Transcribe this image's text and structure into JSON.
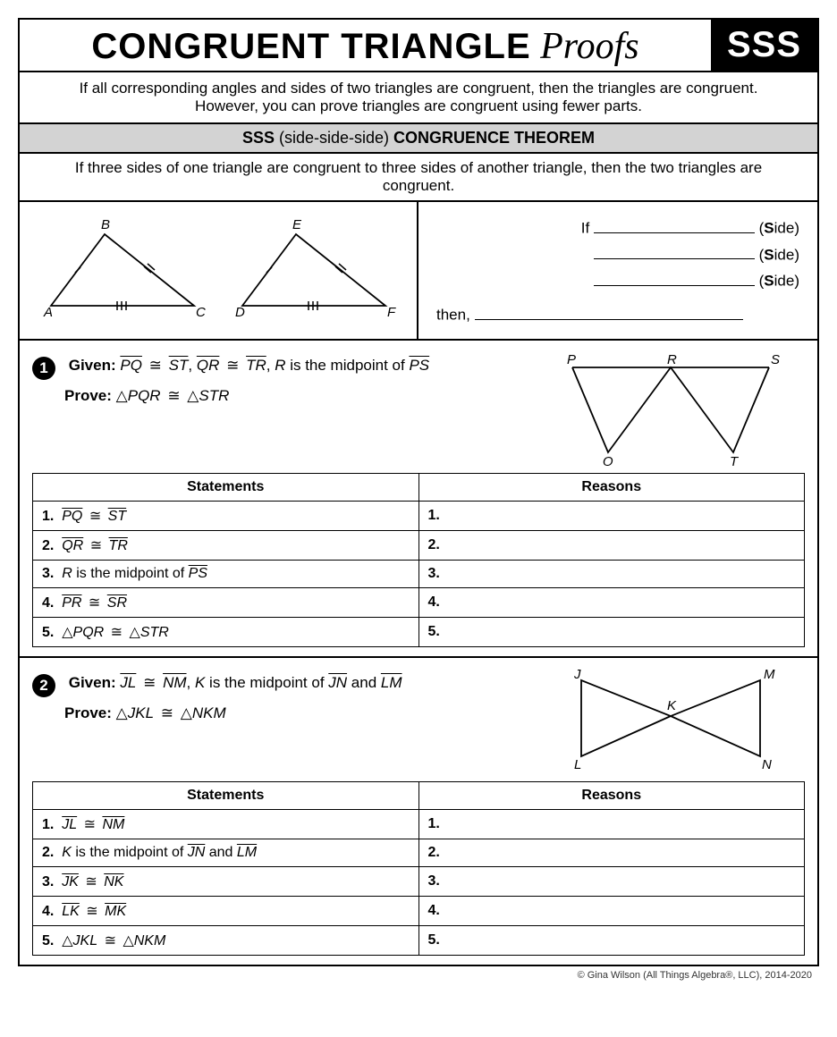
{
  "header": {
    "title_main": "CONGRUENT TRIANGLE",
    "title_script": "Proofs",
    "badge": "SSS"
  },
  "intro": "If all corresponding angles and sides of two triangles are congruent, then the triangles are congruent. However, you can prove triangles are congruent using fewer parts.",
  "theorem": {
    "title_prefix": "SSS",
    "title_mid": "(side-side-side)",
    "title_suffix": "CONGRUENCE THEOREM",
    "desc": "If three sides of one triangle are congruent to three sides of another triangle, then the two triangles are congruent."
  },
  "example": {
    "tri1": {
      "A": "A",
      "B": "B",
      "C": "C"
    },
    "tri2": {
      "D": "D",
      "E": "E",
      "F": "F"
    },
    "if_label": "If",
    "side_label": "(Side)",
    "then_label": "then,"
  },
  "problems": [
    {
      "num": "1",
      "given_label": "Given:",
      "given_html": "<span class='seg'>PQ</span> <span class='cong'></span> <span class='seg'>ST</span>, <span class='seg'>QR</span> <span class='cong'></span> <span class='seg'>TR</span>, <span class='ital'>R</span> is the midpoint of <span class='seg'>PS</span>",
      "prove_label": "Prove:",
      "prove_html": "<span class='tri'></span><span class='ital'>PQR</span> <span class='cong'></span> <span class='tri'></span><span class='ital'>STR</span>",
      "fig_labels": {
        "P": "P",
        "Q": "Q",
        "R": "R",
        "S": "S",
        "T": "T"
      },
      "headers": {
        "stmt": "Statements",
        "reason": "Reasons"
      },
      "rows": [
        {
          "n": "1.",
          "stmt": "<span class='seg'>PQ</span> <span class='cong'></span> <span class='seg'>ST</span>",
          "r": "1."
        },
        {
          "n": "2.",
          "stmt": "<span class='seg'>QR</span> <span class='cong'></span> <span class='seg'>TR</span>",
          "r": "2."
        },
        {
          "n": "3.",
          "stmt": "<span class='ital'>R</span> is the midpoint of <span class='seg'>PS</span>",
          "r": "3."
        },
        {
          "n": "4.",
          "stmt": "<span class='seg'>PR</span> <span class='cong'></span> <span class='seg'>SR</span>",
          "r": "4."
        },
        {
          "n": "5.",
          "stmt": "<span class='tri'></span><span class='ital'>PQR</span> <span class='cong'></span> <span class='tri'></span><span class='ital'>STR</span>",
          "r": "5."
        }
      ]
    },
    {
      "num": "2",
      "given_label": "Given:",
      "given_html": "<span class='seg'>JL</span> <span class='cong'></span> <span class='seg'>NM</span>, <span class='ital'>K</span> is the midpoint of <span class='seg'>JN</span> and <span class='seg'>LM</span>",
      "prove_label": "Prove:",
      "prove_html": "<span class='tri'></span><span class='ital'>JKL</span> <span class='cong'></span> <span class='tri'></span><span class='ital'>NKM</span>",
      "fig_labels": {
        "J": "J",
        "K": "K",
        "L": "L",
        "M": "M",
        "N": "N"
      },
      "headers": {
        "stmt": "Statements",
        "reason": "Reasons"
      },
      "rows": [
        {
          "n": "1.",
          "stmt": "<span class='seg'>JL</span> <span class='cong'></span> <span class='seg'>NM</span>",
          "r": "1."
        },
        {
          "n": "2.",
          "stmt": "<span class='ital'>K</span> is the midpoint of <span class='seg'>JN</span> and <span class='seg'>LM</span>",
          "r": "2."
        },
        {
          "n": "3.",
          "stmt": "<span class='seg'>JK</span> <span class='cong'></span> <span class='seg'>NK</span>",
          "r": "3."
        },
        {
          "n": "4.",
          "stmt": "<span class='seg'>LK</span> <span class='cong'></span> <span class='seg'>MK</span>",
          "r": "4."
        },
        {
          "n": "5.",
          "stmt": "<span class='tri'></span><span class='ital'>JKL</span> <span class='cong'></span> <span class='tri'></span><span class='ital'>NKM</span>",
          "r": "5."
        }
      ]
    }
  ],
  "footer": "© Gina Wilson (All Things Algebra®, LLC), 2014-2020",
  "colors": {
    "border": "#000000",
    "bg": "#ffffff",
    "theorem_bg": "#d3d3d3",
    "badge_bg": "#000000",
    "badge_fg": "#ffffff"
  }
}
